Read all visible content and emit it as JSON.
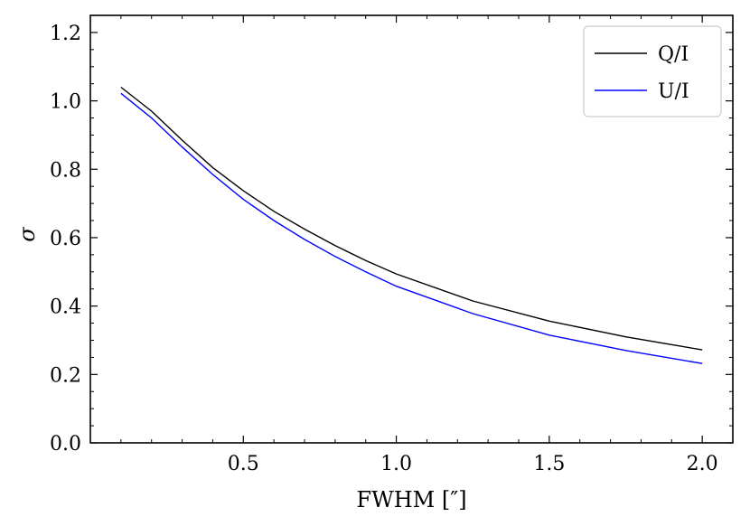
{
  "chart_data": {
    "type": "line",
    "xlabel": "FWHM [″]",
    "ylabel": "σ",
    "xlim": [
      0.0,
      2.1
    ],
    "ylim": [
      0.0,
      1.25
    ],
    "xticks": [
      0.5,
      1.0,
      1.5,
      2.0
    ],
    "xtick_labels": [
      "0.5",
      "1.0",
      "1.5",
      "2.0"
    ],
    "yticks": [
      0.0,
      0.2,
      0.4,
      0.6,
      0.8,
      1.0,
      1.2
    ],
    "ytick_labels": [
      "0.0",
      "0.2",
      "0.4",
      "0.6",
      "0.8",
      "1.0",
      "1.2"
    ],
    "grid": false,
    "legend": "top-right",
    "series": [
      {
        "name": "Q/I",
        "color": "#000000",
        "x": [
          0.1,
          0.2,
          0.3,
          0.4,
          0.5,
          0.6,
          0.7,
          0.8,
          0.9,
          1.0,
          1.25,
          1.5,
          1.75,
          2.0
        ],
        "y": [
          1.04,
          0.97,
          0.885,
          0.805,
          0.737,
          0.677,
          0.625,
          0.577,
          0.533,
          0.494,
          0.415,
          0.356,
          0.31,
          0.272
        ]
      },
      {
        "name": "U/I",
        "color": "#0000ff",
        "x": [
          0.1,
          0.2,
          0.3,
          0.4,
          0.5,
          0.6,
          0.7,
          0.8,
          0.9,
          1.0,
          1.25,
          1.5,
          1.75,
          2.0
        ],
        "y": [
          1.022,
          0.95,
          0.865,
          0.785,
          0.712,
          0.65,
          0.595,
          0.545,
          0.5,
          0.458,
          0.378,
          0.315,
          0.27,
          0.232
        ]
      }
    ]
  }
}
